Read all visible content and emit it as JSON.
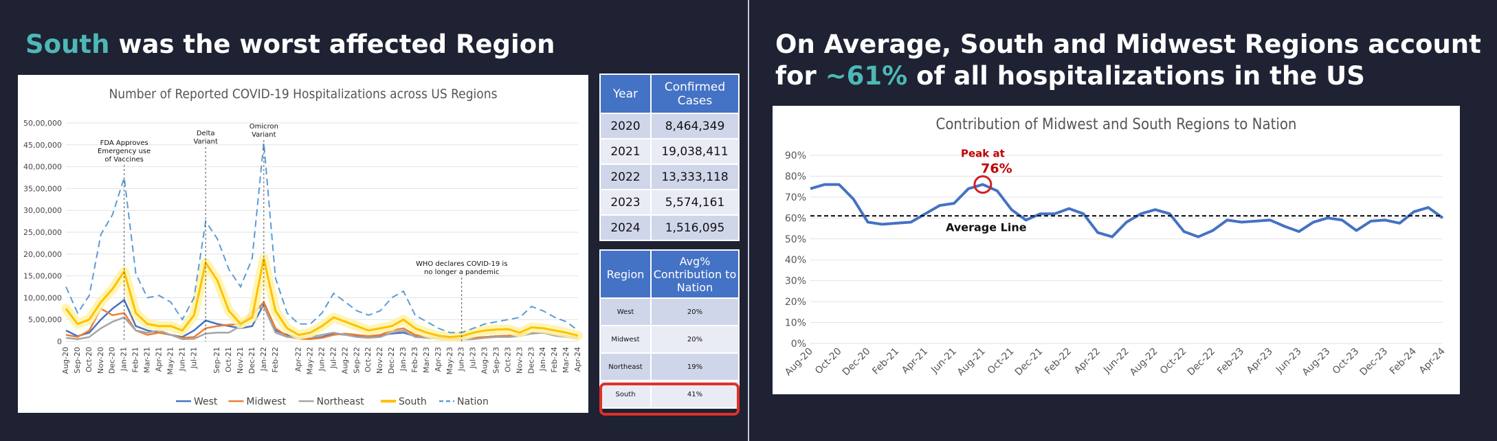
{
  "left": {
    "heading_accent": "South",
    "heading_rest": "was the worst affected Region",
    "chart": {
      "title": "Number of Reported COVID-19 Hospitalizations across US Regions",
      "annotations": [
        "FDA Approves Emergency use of Vaccines",
        "Delta Variant",
        "Omicron Variant",
        "WHO declares COVID-19 is no longer a pandemic"
      ],
      "legend": [
        "West",
        "Midwest",
        "Northeast",
        "South",
        "Nation"
      ]
    }
  },
  "cases_table": {
    "headers": [
      "Year",
      "Confirmed Cases"
    ],
    "rows": [
      [
        "2020",
        "8,464,349"
      ],
      [
        "2021",
        "19,038,411"
      ],
      [
        "2022",
        "13,333,118"
      ],
      [
        "2023",
        "5,574,161"
      ],
      [
        "2024",
        "1,516,095"
      ]
    ]
  },
  "region_table": {
    "headers": [
      "Region",
      "Avg% Contribution to Nation"
    ],
    "rows": [
      [
        "West",
        "20%"
      ],
      [
        "Midwest",
        "20%"
      ],
      [
        "Northeast",
        "19%"
      ],
      [
        "South",
        "41%"
      ]
    ]
  },
  "right": {
    "heading_line1": "On Average, South and Midwest Regions account",
    "heading_line2_pre": "for ",
    "heading_accent": "~61%",
    "heading_line2_post": " of all hospitalizations in the US",
    "chart": {
      "title": "Contribution of Midwest and South Regions to Nation",
      "peak_label": "Peak at",
      "peak_value": "76%",
      "average_label": "Average Line"
    }
  },
  "colors": {
    "background": "#1e2233",
    "accent": "#4db8b6",
    "west": "#4472c4",
    "midwest": "#ed7d31",
    "northeast": "#a5a5a5",
    "south": "#ffc000",
    "nation": "#5b9bd5",
    "table_header": "#4472c4",
    "highlight": "#e03028"
  },
  "chart_data": [
    {
      "type": "line",
      "title": "Number of Reported COVID-19 Hospitalizations across US Regions",
      "x": [
        "Aug-20",
        "Sep-20",
        "Oct-20",
        "Nov-20",
        "Dec-20",
        "Jan-21",
        "Feb-21",
        "Mar-21",
        "Apr-21",
        "May-21",
        "Jun-21",
        "Jul-21",
        "Aug-21",
        "Sep-21",
        "Oct-21",
        "Nov-21",
        "Dec-21",
        "Jan-22",
        "Feb-22",
        "Mar-22",
        "Apr-22",
        "May-22",
        "Jun-22",
        "Jul-22",
        "Aug-22",
        "Sep-22",
        "Oct-22",
        "Nov-22",
        "Dec-22",
        "Jan-23",
        "Feb-23",
        "Mar-23",
        "Apr-23",
        "May-23",
        "Jun-23",
        "Jul-23",
        "Aug-23",
        "Sep-23",
        "Oct-23",
        "Nov-23",
        "Dec-23",
        "Jan-24",
        "Feb-24",
        "Mar-24",
        "Apr-24"
      ],
      "xticks": [
        "Aug-20",
        "Sep-20",
        "Oct-20",
        "Nov-20",
        "Dec-20",
        "Jan-21",
        "Feb-21",
        "Mar-21",
        "Apr-21",
        "May-21",
        "Jun-21",
        "Jul-21",
        "Sep-21",
        "Oct-21",
        "Nov-21",
        "Dec-21",
        "Jan-22",
        "Feb-22",
        "Apr-22",
        "May-22",
        "Jun-22",
        "Jul-22",
        "Aug-22",
        "Sep-22",
        "Oct-22",
        "Nov-22",
        "Dec-22",
        "Jan-23",
        "Feb-23",
        "Mar-23",
        "Apr-23",
        "May-23",
        "Jun-23",
        "Jul-23",
        "Aug-23",
        "Sep-23",
        "Oct-23",
        "Nov-23",
        "Dec-23",
        "Jan-24",
        "Feb-24",
        "Mar-24",
        "Apr-24"
      ],
      "yticks": [
        "0",
        "5,00,000",
        "10,00,000",
        "15,00,000",
        "20,00,000",
        "25,00,000",
        "30,00,000",
        "35,00,000",
        "40,00,000",
        "45,00,000",
        "50,00,000"
      ],
      "ylim": [
        0,
        5000000
      ],
      "series": [
        {
          "name": "West",
          "values": [
            250000,
            120000,
            200000,
            500000,
            750000,
            950000,
            350000,
            250000,
            200000,
            150000,
            100000,
            250000,
            480000,
            400000,
            350000,
            300000,
            350000,
            850000,
            250000,
            150000,
            80000,
            60000,
            100000,
            180000,
            150000,
            120000,
            100000,
            130000,
            180000,
            200000,
            120000,
            100000,
            80000,
            60000,
            60000,
            80000,
            100000,
            120000,
            130000,
            150000,
            180000,
            200000,
            150000,
            120000,
            80000
          ]
        },
        {
          "name": "Midwest",
          "values": [
            150000,
            100000,
            250000,
            750000,
            600000,
            650000,
            250000,
            150000,
            200000,
            150000,
            80000,
            100000,
            300000,
            350000,
            380000,
            400000,
            600000,
            900000,
            300000,
            120000,
            60000,
            50000,
            80000,
            150000,
            180000,
            150000,
            120000,
            150000,
            250000,
            300000,
            150000,
            100000,
            70000,
            50000,
            50000,
            80000,
            100000,
            120000,
            130000,
            150000,
            200000,
            200000,
            150000,
            120000,
            80000
          ]
        },
        {
          "name": "Northeast",
          "values": [
            80000,
            50000,
            100000,
            300000,
            450000,
            550000,
            250000,
            200000,
            250000,
            150000,
            50000,
            60000,
            180000,
            200000,
            200000,
            350000,
            700000,
            800000,
            200000,
            100000,
            80000,
            100000,
            150000,
            200000,
            150000,
            100000,
            80000,
            100000,
            200000,
            250000,
            100000,
            80000,
            60000,
            40000,
            40000,
            50000,
            80000,
            100000,
            100000,
            120000,
            180000,
            200000,
            130000,
            100000,
            60000
          ]
        },
        {
          "name": "South",
          "values": [
            750000,
            400000,
            500000,
            900000,
            1200000,
            1600000,
            650000,
            400000,
            350000,
            350000,
            250000,
            600000,
            1800000,
            1400000,
            700000,
            400000,
            550000,
            1900000,
            700000,
            300000,
            150000,
            200000,
            350000,
            550000,
            450000,
            350000,
            250000,
            300000,
            350000,
            500000,
            300000,
            200000,
            130000,
            100000,
            120000,
            200000,
            250000,
            270000,
            280000,
            200000,
            320000,
            300000,
            250000,
            200000,
            130000
          ]
        },
        {
          "name": "Nation",
          "values": [
            1250000,
            650000,
            1050000,
            2450000,
            2900000,
            3750000,
            1550000,
            1000000,
            1050000,
            900000,
            500000,
            1000000,
            2750000,
            2350000,
            1650000,
            1250000,
            1900000,
            4550000,
            1450000,
            650000,
            400000,
            400000,
            650000,
            1100000,
            900000,
            700000,
            600000,
            700000,
            1000000,
            1150000,
            600000,
            450000,
            300000,
            200000,
            200000,
            300000,
            400000,
            450000,
            500000,
            550000,
            800000,
            700000,
            550000,
            450000,
            250000
          ]
        }
      ]
    },
    {
      "type": "line",
      "title": "Contribution of Midwest and South Regions to Nation",
      "x": [
        "Aug-20",
        "Sep-20",
        "Oct-20",
        "Nov-20",
        "Dec-20",
        "Jan-21",
        "Feb-21",
        "Mar-21",
        "Apr-21",
        "May-21",
        "Jun-21",
        "Jul-21",
        "Aug-21",
        "Sep-21",
        "Oct-21",
        "Nov-21",
        "Dec-21",
        "Jan-22",
        "Feb-22",
        "Mar-22",
        "Apr-22",
        "May-22",
        "Jun-22",
        "Jul-22",
        "Aug-22",
        "Sep-22",
        "Oct-22",
        "Nov-22",
        "Dec-22",
        "Jan-23",
        "Feb-23",
        "Mar-23",
        "Apr-23",
        "May-23",
        "Jun-23",
        "Jul-23",
        "Aug-23",
        "Sep-23",
        "Oct-23",
        "Nov-23",
        "Dec-23",
        "Jan-24",
        "Feb-24",
        "Mar-24",
        "Apr-24"
      ],
      "xticks": [
        "Aug-20",
        "Oct-20",
        "Dec-20",
        "Feb-21",
        "Apr-21",
        "Jun-21",
        "Aug-21",
        "Oct-21",
        "Dec-21",
        "Feb-22",
        "Apr-22",
        "Jun-22",
        "Aug-22",
        "Oct-22",
        "Dec-22",
        "Feb-23",
        "Apr-23",
        "Jun-23",
        "Aug-23",
        "Oct-23",
        "Dec-23",
        "Feb-24",
        "Apr-24"
      ],
      "yticks": [
        "0%",
        "10%",
        "20%",
        "30%",
        "40%",
        "50%",
        "60%",
        "70%",
        "80%",
        "90%"
      ],
      "ylim": [
        0,
        90
      ],
      "average": 61,
      "series": [
        {
          "name": "Midwest + South",
          "values": [
            74,
            76,
            76,
            69,
            58,
            57,
            57.5,
            58,
            62,
            66,
            67,
            74,
            76,
            73,
            64,
            59,
            62,
            62,
            64.5,
            62,
            53,
            51,
            58,
            62,
            64,
            62,
            53.5,
            51,
            54,
            59,
            58,
            58.5,
            59,
            56,
            53.5,
            58,
            60,
            59,
            54,
            58.5,
            59,
            57.5,
            63,
            65,
            60
          ]
        }
      ]
    }
  ]
}
